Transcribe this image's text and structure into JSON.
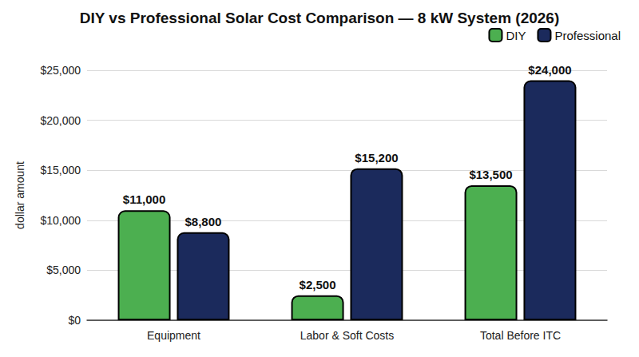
{
  "chart_data": {
    "type": "bar",
    "title": "DIY vs Professional Solar Cost Comparison — 8 kW System (2026)",
    "y_label": "dollar amount",
    "categories": [
      "Equipment",
      "Labor & Soft Costs",
      "Total Before ITC"
    ],
    "series": [
      {
        "name": "DIY",
        "color": "#4caf50",
        "values": [
          11000,
          2500,
          13500
        ],
        "value_labels": [
          "$11,000",
          "$2,500",
          "$13,500"
        ]
      },
      {
        "name": "Professional",
        "color": "#1b2a5c",
        "values": [
          8800,
          15200,
          24000
        ],
        "value_labels": [
          "$8,800",
          "$15,200",
          "$24,000"
        ]
      }
    ],
    "ylim": [
      0,
      25000
    ],
    "yticks": [
      {
        "value": 0,
        "label": "$0"
      },
      {
        "value": 5000,
        "label": "$5,000"
      },
      {
        "value": 10000,
        "label": "$10,000"
      },
      {
        "value": 15000,
        "label": "$15,000"
      },
      {
        "value": 20000,
        "label": "$20,000"
      },
      {
        "value": 25000,
        "label": "$25,000"
      }
    ],
    "grid": true,
    "legend": "top-right",
    "data_labels": true
  }
}
